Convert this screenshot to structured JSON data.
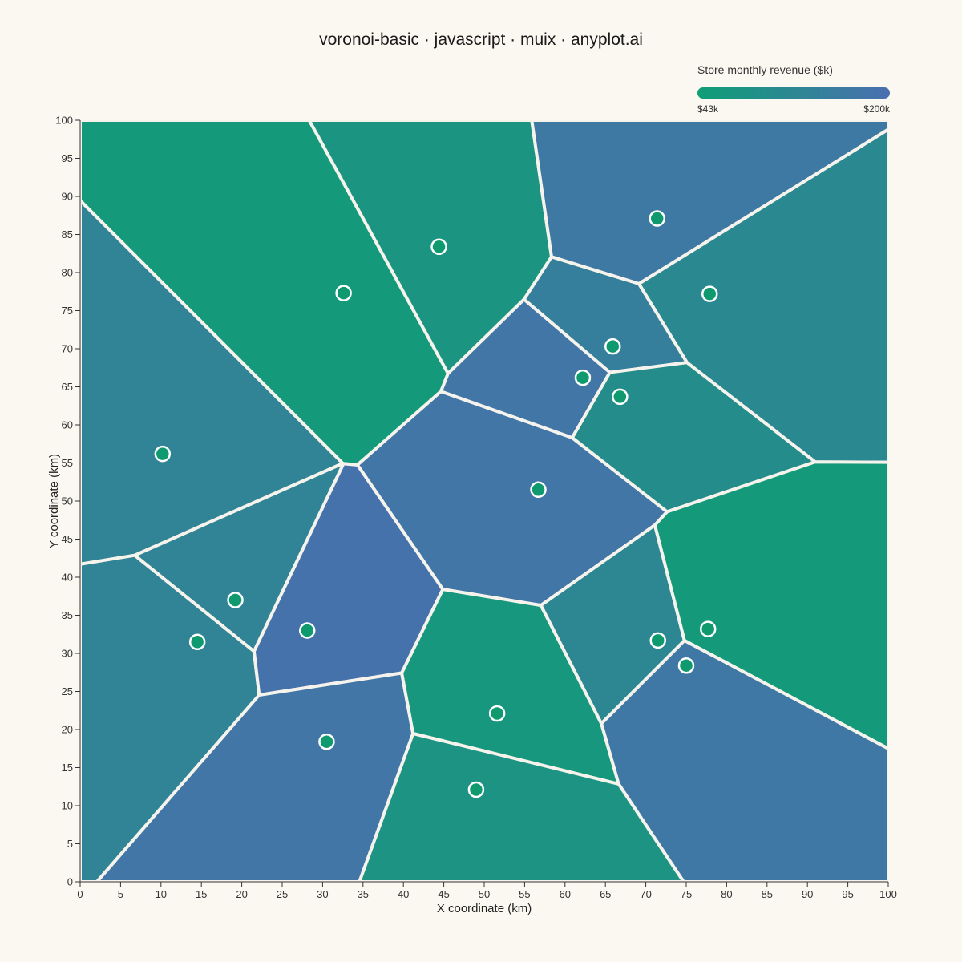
{
  "title": "voronoi-basic · javascript · muix · anyplot.ai",
  "legend": {
    "title": "Store monthly revenue ($k)",
    "min_label": "$43k",
    "max_label": "$200k",
    "min_color": "#0f9e76",
    "max_color": "#4a6fb0"
  },
  "colors": {
    "background": "#faf8f1",
    "cell_border": "#f5f3ec",
    "point_fill": "#0e9a6e",
    "point_stroke": "#ffffff",
    "axis": "#333333"
  },
  "chart_data": {
    "type": "voronoi",
    "xlabel": "X coordinate (km)",
    "ylabel": "Y coordinate (km)",
    "xlim": [
      0,
      100
    ],
    "ylim": [
      0,
      100
    ],
    "x_ticks": [
      0,
      5,
      10,
      15,
      20,
      25,
      30,
      35,
      40,
      45,
      50,
      55,
      60,
      65,
      70,
      75,
      80,
      85,
      90,
      95,
      100
    ],
    "y_ticks": [
      0,
      5,
      10,
      15,
      20,
      25,
      30,
      35,
      40,
      45,
      50,
      55,
      60,
      65,
      70,
      75,
      80,
      85,
      90,
      95,
      100
    ],
    "revenue_range": [
      43,
      200
    ],
    "points": [
      {
        "x": 10.2,
        "y": 56.2,
        "revenue": 130
      },
      {
        "x": 14.5,
        "y": 31.5,
        "revenue": 130
      },
      {
        "x": 19.2,
        "y": 37.0,
        "revenue": 130
      },
      {
        "x": 28.1,
        "y": 33.0,
        "revenue": 190
      },
      {
        "x": 30.5,
        "y": 18.4,
        "revenue": 175
      },
      {
        "x": 32.6,
        "y": 77.3,
        "revenue": 55
      },
      {
        "x": 44.4,
        "y": 83.4,
        "revenue": 75
      },
      {
        "x": 56.7,
        "y": 51.5,
        "revenue": 175
      },
      {
        "x": 62.2,
        "y": 66.2,
        "revenue": 175
      },
      {
        "x": 65.9,
        "y": 70.3,
        "revenue": 145
      },
      {
        "x": 66.8,
        "y": 63.7,
        "revenue": 100
      },
      {
        "x": 51.6,
        "y": 22.1,
        "revenue": 65
      },
      {
        "x": 49.0,
        "y": 12.1,
        "revenue": 80
      },
      {
        "x": 71.4,
        "y": 87.1,
        "revenue": 165
      },
      {
        "x": 77.9,
        "y": 77.2,
        "revenue": 115
      },
      {
        "x": 71.5,
        "y": 31.7,
        "revenue": 120
      },
      {
        "x": 77.7,
        "y": 33.2,
        "revenue": 55
      },
      {
        "x": 75.0,
        "y": 28.4,
        "revenue": 170
      }
    ]
  }
}
